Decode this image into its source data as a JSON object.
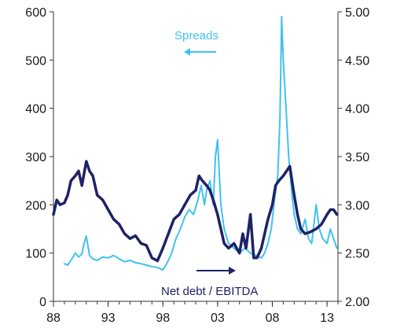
{
  "chart_data": {
    "type": "line",
    "title": "",
    "xlabel": "",
    "ylabel_left": "",
    "ylabel_right": "",
    "x_range": [
      1988,
      2014
    ],
    "x_ticks": [
      "88",
      "93",
      "98",
      "03",
      "08",
      "13"
    ],
    "x_tick_values": [
      1988,
      1993,
      1998,
      2003,
      2008,
      2013
    ],
    "y_left": {
      "range": [
        0,
        600
      ],
      "ticks": [
        "0",
        "100",
        "200",
        "300",
        "400",
        "500",
        "600"
      ]
    },
    "y_right": {
      "range": [
        2.0,
        5.0
      ],
      "ticks": [
        "2.00",
        "2.50",
        "3.00",
        "3.50",
        "4.00",
        "4.50",
        "5.00"
      ]
    },
    "grid": false,
    "annotations": {
      "spreads": {
        "text": "Spreads",
        "arrow": "left"
      },
      "net_debt": {
        "text": "Net debt / EBITDA",
        "arrow": "right"
      }
    },
    "series": [
      {
        "name": "Spreads",
        "axis": "left",
        "color": "#3ec3ee",
        "x": [
          1989.0,
          1989.3,
          1989.6,
          1990.0,
          1990.3,
          1990.6,
          1990.8,
          1991.0,
          1991.3,
          1991.6,
          1992.0,
          1992.5,
          1993.0,
          1993.5,
          1994.0,
          1994.5,
          1995.0,
          1995.5,
          1996.0,
          1996.5,
          1997.0,
          1997.5,
          1998.0,
          1998.4,
          1998.8,
          1999.2,
          1999.6,
          2000.0,
          2000.4,
          2000.8,
          2001.2,
          2001.5,
          2001.8,
          2002.0,
          2002.3,
          2002.6,
          2002.8,
          2003.0,
          2003.3,
          2003.6,
          2004.0,
          2004.5,
          2005.0,
          2005.5,
          2006.0,
          2006.5,
          2007.0,
          2007.3,
          2007.6,
          2007.9,
          2008.2,
          2008.5,
          2008.7,
          2008.85,
          2009.0,
          2009.2,
          2009.5,
          2009.8,
          2010.0,
          2010.3,
          2010.6,
          2011.0,
          2011.3,
          2011.6,
          2012.0,
          2012.3,
          2012.6,
          2013.0,
          2013.3,
          2013.6,
          2013.9
        ],
        "values": [
          78,
          75,
          85,
          100,
          92,
          98,
          120,
          135,
          95,
          88,
          85,
          92,
          90,
          95,
          88,
          82,
          85,
          80,
          78,
          75,
          72,
          70,
          65,
          80,
          100,
          130,
          150,
          175,
          190,
          180,
          210,
          240,
          200,
          230,
          250,
          200,
          300,
          335,
          200,
          150,
          120,
          110,
          100,
          110,
          100,
          95,
          90,
          100,
          120,
          150,
          210,
          260,
          380,
          590,
          500,
          420,
          300,
          220,
          180,
          150,
          140,
          170,
          130,
          120,
          200,
          150,
          130,
          120,
          150,
          130,
          110
        ]
      },
      {
        "name": "Net debt / EBITDA",
        "axis": "right",
        "color": "#1f2266",
        "x": [
          1988.0,
          1988.3,
          1988.6,
          1989.0,
          1989.3,
          1989.6,
          1990.0,
          1990.3,
          1990.6,
          1991.0,
          1991.3,
          1991.6,
          1992.0,
          1992.5,
          1993.0,
          1993.5,
          1994.0,
          1994.5,
          1995.0,
          1995.5,
          1996.0,
          1996.5,
          1997.0,
          1997.5,
          1998.0,
          1998.5,
          1999.0,
          1999.5,
          2000.0,
          2000.5,
          2001.0,
          2001.3,
          2001.6,
          2002.0,
          2002.3,
          2002.6,
          2003.0,
          2003.3,
          2003.6,
          2004.0,
          2004.5,
          2005.0,
          2005.3,
          2005.6,
          2006.0,
          2006.3,
          2006.6,
          2007.0,
          2007.3,
          2007.6,
          2008.0,
          2008.3,
          2008.6,
          2009.0,
          2009.3,
          2009.6,
          2010.0,
          2010.3,
          2010.6,
          2011.0,
          2011.5,
          2012.0,
          2012.5,
          2013.0,
          2013.3,
          2013.6,
          2013.9
        ],
        "values": [
          2.9,
          3.05,
          3.0,
          3.02,
          3.1,
          3.25,
          3.3,
          3.35,
          3.2,
          3.45,
          3.35,
          3.3,
          3.1,
          3.05,
          2.95,
          2.85,
          2.8,
          2.7,
          2.65,
          2.68,
          2.6,
          2.58,
          2.45,
          2.42,
          2.55,
          2.7,
          2.85,
          2.9,
          3.0,
          3.1,
          3.15,
          3.3,
          3.25,
          3.2,
          3.15,
          3.05,
          2.9,
          2.75,
          2.6,
          2.55,
          2.6,
          2.5,
          2.7,
          2.55,
          2.9,
          2.45,
          2.45,
          2.55,
          2.7,
          2.85,
          3.0,
          3.2,
          3.25,
          3.3,
          3.35,
          3.4,
          3.1,
          2.9,
          2.75,
          2.7,
          2.72,
          2.75,
          2.8,
          2.9,
          2.95,
          2.95,
          2.9
        ]
      }
    ]
  }
}
